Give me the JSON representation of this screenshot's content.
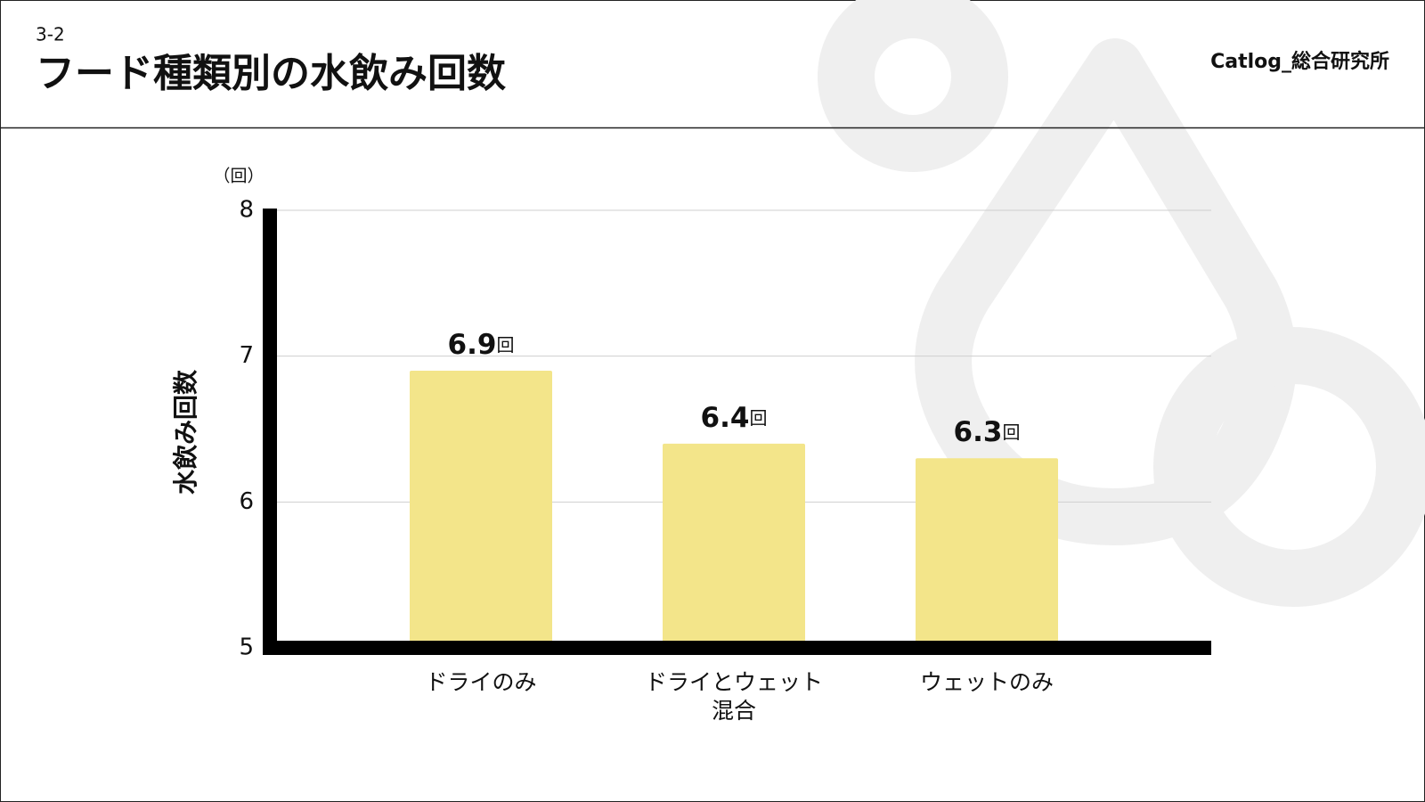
{
  "header": {
    "section": "3-2",
    "title": "フード種類別の水飲み回数",
    "brand": "Catlog_総合研究所"
  },
  "chart_data": {
    "type": "bar",
    "y_unit": "（回）",
    "y_label": "水飲み回数",
    "categories": [
      "ドライのみ",
      "ドライとウェット\n混合",
      "ウェットのみ"
    ],
    "values": [
      6.9,
      6.4,
      6.3
    ],
    "value_labels": [
      "6.9回",
      "6.4回",
      "6.3回"
    ],
    "color": "#f3e58a",
    "ylim": [
      5,
      8
    ],
    "yticks": [
      5,
      6,
      7,
      8
    ],
    "grid": true
  }
}
